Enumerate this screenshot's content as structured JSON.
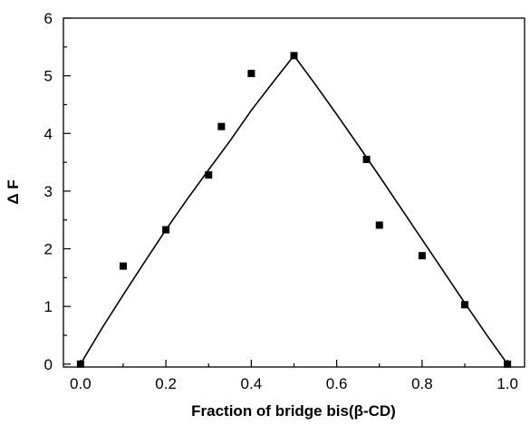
{
  "chart_data": {
    "type": "scatter",
    "title": "",
    "xlabel": "Fraction of bridge bis(β-CD)",
    "ylabel": "Δ F",
    "xlim": [
      -0.04,
      1.04
    ],
    "ylim": [
      -0.05,
      6
    ],
    "xticks": [
      0.0,
      0.2,
      0.4,
      0.6,
      0.8,
      1.0
    ],
    "xtick_labels": [
      "0.0",
      "0.2",
      "0.4",
      "0.6",
      "0.8",
      "1.0"
    ],
    "yticks": [
      0,
      1,
      2,
      3,
      4,
      5,
      6
    ],
    "ytick_labels": [
      "0",
      "1",
      "2",
      "3",
      "4",
      "5",
      "6"
    ],
    "grid": false,
    "legend": false,
    "marker": "square",
    "marker_color": "#000000",
    "line_color": "#000000",
    "series": [
      {
        "x": [
          0.0,
          0.1,
          0.2,
          0.3,
          0.33,
          0.4,
          0.5,
          0.67,
          0.7,
          0.8,
          0.9,
          1.0
        ],
        "y": [
          0.0,
          1.7,
          2.33,
          3.28,
          4.12,
          5.04,
          5.35,
          3.55,
          2.41,
          1.88,
          1.03,
          0.0
        ]
      }
    ],
    "fit_curve": {
      "x": [
        0.0,
        0.05,
        0.1,
        0.15,
        0.2,
        0.25,
        0.3,
        0.35,
        0.4,
        0.45,
        0.5,
        0.55,
        0.6,
        0.65,
        0.7,
        0.75,
        0.8,
        0.85,
        0.9,
        0.95,
        1.0
      ],
      "y": [
        0.0,
        0.62,
        1.2,
        1.77,
        2.33,
        2.86,
        3.37,
        3.87,
        4.4,
        4.88,
        5.35,
        4.85,
        4.33,
        3.8,
        3.26,
        2.71,
        2.16,
        1.61,
        1.06,
        0.52,
        0.0
      ]
    }
  }
}
